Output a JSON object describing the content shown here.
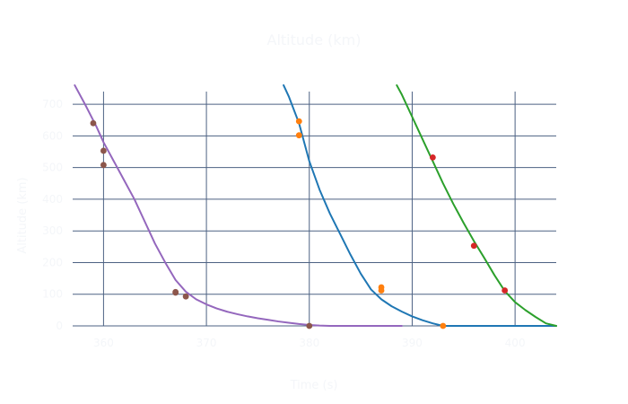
{
  "chart_data": {
    "type": "line",
    "title": "Altitude (km)",
    "xlabel": "Time (s)",
    "ylabel": "Altitude (km)",
    "xlim": [
      357,
      404
    ],
    "ylim": [
      0,
      700
    ],
    "x_ticks": [
      {
        "value": 360,
        "label": "360"
      },
      {
        "value": 370,
        "label": "370"
      },
      {
        "value": 380,
        "label": "380"
      },
      {
        "value": 390,
        "label": "390"
      },
      {
        "value": 400,
        "label": "400"
      }
    ],
    "y_ticks": [
      {
        "value": 0,
        "label": "0"
      },
      {
        "value": 100,
        "label": "100"
      },
      {
        "value": 200,
        "label": "200"
      },
      {
        "value": 300,
        "label": "300"
      },
      {
        "value": 400,
        "label": "400"
      },
      {
        "value": 500,
        "label": "500"
      },
      {
        "value": 600,
        "label": "600"
      },
      {
        "value": 700,
        "label": "700"
      }
    ],
    "grid": true,
    "colors": {
      "axis_text": "#f4f6f9",
      "grid": "#4d6283",
      "purple": "#9467bd",
      "brown": "#8c564b",
      "blue": "#1f77b4",
      "orange": "#ff7f0e",
      "green": "#2ca02c",
      "red": "#d62728"
    },
    "series": [
      {
        "kind": "line",
        "color": "#9467bd",
        "points": [
          [
            357.2,
            760
          ],
          [
            358.2,
            700
          ],
          [
            359.3,
            630
          ],
          [
            360.0,
            580
          ],
          [
            361.0,
            520
          ],
          [
            362.0,
            460
          ],
          [
            363.0,
            400
          ],
          [
            364.0,
            330
          ],
          [
            365.0,
            260
          ],
          [
            366.0,
            200
          ],
          [
            367.0,
            145
          ],
          [
            368.0,
            108
          ],
          [
            369.0,
            84
          ],
          [
            370.0,
            68
          ],
          [
            371.0,
            55
          ],
          [
            372.0,
            45
          ],
          [
            373.0,
            37
          ],
          [
            374.0,
            30
          ],
          [
            375.0,
            24
          ],
          [
            376.0,
            19
          ],
          [
            377.0,
            14
          ],
          [
            378.0,
            10
          ],
          [
            379.0,
            6
          ],
          [
            380.0,
            3
          ],
          [
            381.0,
            1
          ],
          [
            382.0,
            0
          ],
          [
            389.0,
            0
          ]
        ]
      },
      {
        "kind": "scatter",
        "color": "#8c564b",
        "points": [
          [
            359.0,
            640
          ],
          [
            360.0,
            553
          ],
          [
            360.0,
            508
          ],
          [
            367.0,
            107
          ],
          [
            367.0,
            105
          ],
          [
            368.0,
            93
          ],
          [
            380.0,
            0
          ]
        ]
      },
      {
        "kind": "line",
        "color": "#1f77b4",
        "points": [
          [
            377.5,
            760
          ],
          [
            378.0,
            725
          ],
          [
            379.0,
            640
          ],
          [
            380.0,
            520
          ],
          [
            381.0,
            430
          ],
          [
            382.0,
            355
          ],
          [
            383.0,
            290
          ],
          [
            384.0,
            225
          ],
          [
            385.0,
            165
          ],
          [
            386.0,
            115
          ],
          [
            387.0,
            84
          ],
          [
            388.0,
            62
          ],
          [
            389.0,
            45
          ],
          [
            390.0,
            30
          ],
          [
            391.0,
            18
          ],
          [
            392.0,
            8
          ],
          [
            393.0,
            0
          ],
          [
            404.0,
            0
          ]
        ]
      },
      {
        "kind": "scatter",
        "color": "#ff7f0e",
        "points": [
          [
            379.0,
            646
          ],
          [
            379.0,
            602
          ],
          [
            387.0,
            122
          ],
          [
            387.0,
            112
          ],
          [
            393.0,
            0
          ]
        ]
      },
      {
        "kind": "line",
        "color": "#2ca02c",
        "points": [
          [
            388.5,
            760
          ],
          [
            389.0,
            730
          ],
          [
            390.0,
            660
          ],
          [
            391.0,
            590
          ],
          [
            392.0,
            520
          ],
          [
            393.0,
            450
          ],
          [
            394.0,
            385
          ],
          [
            395.0,
            325
          ],
          [
            396.0,
            268
          ],
          [
            397.0,
            215
          ],
          [
            398.0,
            160
          ],
          [
            399.0,
            110
          ],
          [
            400.0,
            75
          ],
          [
            401.0,
            50
          ],
          [
            402.0,
            28
          ],
          [
            403.0,
            8
          ],
          [
            404.0,
            0
          ]
        ]
      },
      {
        "kind": "scatter",
        "color": "#d62728",
        "points": [
          [
            392.0,
            532
          ],
          [
            396.0,
            253
          ],
          [
            399.0,
            112
          ]
        ]
      }
    ]
  }
}
